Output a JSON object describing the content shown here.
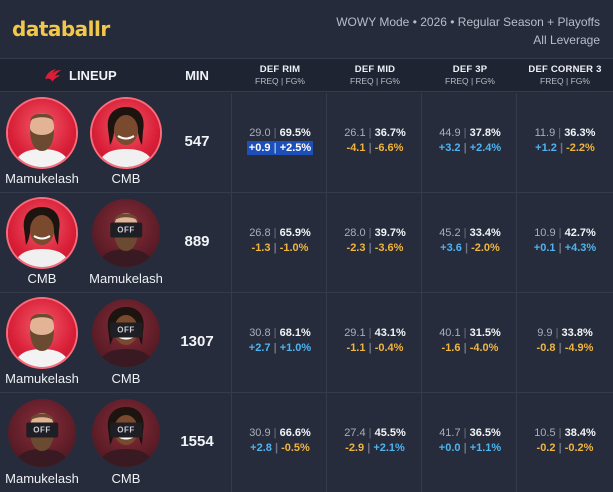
{
  "app": {
    "logo": "databallr"
  },
  "meta": {
    "line1": "WOWY Mode • 2026 • Regular Season + Playoffs",
    "line2": "All Leverage"
  },
  "columns": {
    "lineup": "LINEUP",
    "min": "MIN",
    "stats": [
      {
        "title": "DEF RIM",
        "sub": "FREQ | FG%"
      },
      {
        "title": "DEF MID",
        "sub": "FREQ | FG%"
      },
      {
        "title": "DEF 3P",
        "sub": "FREQ | FG%"
      },
      {
        "title": "DEF CORNER 3",
        "sub": "FREQ | FG%"
      }
    ]
  },
  "off_label": "OFF",
  "rows": [
    {
      "players": [
        {
          "name": "Mamukelash",
          "status": "on"
        },
        {
          "name": "CMB",
          "status": "on"
        }
      ],
      "min": "547",
      "stats": [
        {
          "freq": "29.0",
          "fg": "69.5%",
          "dfreq": "+0.9",
          "dfg": "+2.5%",
          "highlight": true
        },
        {
          "freq": "26.1",
          "fg": "36.7%",
          "dfreq": "-4.1",
          "dfg": "-6.6%"
        },
        {
          "freq": "44.9",
          "fg": "37.8%",
          "dfreq": "+3.2",
          "dfg": "+2.4%"
        },
        {
          "freq": "11.9",
          "fg": "36.3%",
          "dfreq": "+1.2",
          "dfg": "-2.2%"
        }
      ]
    },
    {
      "players": [
        {
          "name": "CMB",
          "status": "on"
        },
        {
          "name": "Mamukelash",
          "status": "off"
        }
      ],
      "min": "889",
      "stats": [
        {
          "freq": "26.8",
          "fg": "65.9%",
          "dfreq": "-1.3",
          "dfg": "-1.0%"
        },
        {
          "freq": "28.0",
          "fg": "39.7%",
          "dfreq": "-2.3",
          "dfg": "-3.6%"
        },
        {
          "freq": "45.2",
          "fg": "33.4%",
          "dfreq": "+3.6",
          "dfg": "-2.0%"
        },
        {
          "freq": "10.9",
          "fg": "42.7%",
          "dfreq": "+0.1",
          "dfg": "+4.3%"
        }
      ]
    },
    {
      "players": [
        {
          "name": "Mamukelash",
          "status": "on"
        },
        {
          "name": "CMB",
          "status": "off"
        }
      ],
      "min": "1307",
      "stats": [
        {
          "freq": "30.8",
          "fg": "68.1%",
          "dfreq": "+2.7",
          "dfg": "+1.0%"
        },
        {
          "freq": "29.1",
          "fg": "43.1%",
          "dfreq": "-1.1",
          "dfg": "-0.4%"
        },
        {
          "freq": "40.1",
          "fg": "31.5%",
          "dfreq": "-1.6",
          "dfg": "-4.0%"
        },
        {
          "freq": "9.9",
          "fg": "33.8%",
          "dfreq": "-0.8",
          "dfg": "-4.9%"
        }
      ]
    },
    {
      "players": [
        {
          "name": "Mamukelash",
          "status": "off"
        },
        {
          "name": "CMB",
          "status": "off"
        }
      ],
      "min": "1554",
      "stats": [
        {
          "freq": "30.9",
          "fg": "66.6%",
          "dfreq": "+2.8",
          "dfg": "-0.5%"
        },
        {
          "freq": "27.4",
          "fg": "45.5%",
          "dfreq": "-2.9",
          "dfg": "+2.1%"
        },
        {
          "freq": "41.7",
          "fg": "36.5%",
          "dfreq": "+0.0",
          "dfg": "+1.1%"
        },
        {
          "freq": "10.5",
          "fg": "38.4%",
          "dfreq": "-0.2",
          "dfg": "-0.2%"
        }
      ]
    }
  ],
  "colors": {
    "background": "#252b3a",
    "logo": "#f2c84b",
    "positive": "#4fb3f0",
    "negative": "#f0b540",
    "highlight": "#1d4fb8",
    "raptors_red": "#d91f37"
  }
}
